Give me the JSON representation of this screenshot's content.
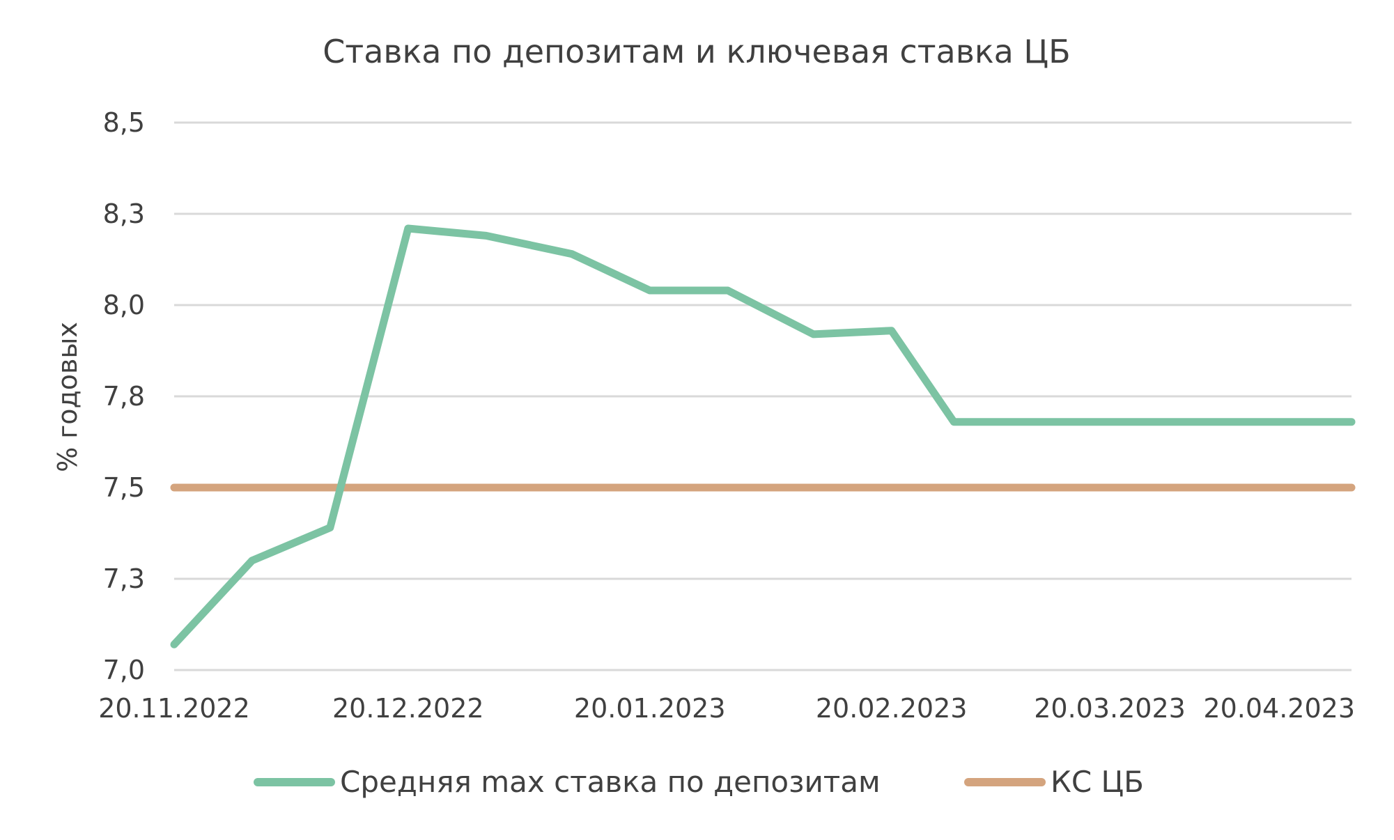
{
  "chart_data": {
    "type": "line",
    "title": "Ставка по депозитам и ключевая ставка ЦБ",
    "ylabel": "% годовых",
    "xlabel": "",
    "ylim": [
      7.0,
      8.5
    ],
    "yticks": [
      7.0,
      7.25,
      7.5,
      7.75,
      8.0,
      8.25,
      8.5
    ],
    "ytick_labels": [
      "7,0",
      "7,3",
      "7,5",
      "7,8",
      "8,0",
      "8,3",
      "8,5"
    ],
    "xlim": [
      "2022-11-20",
      "2023-04-20"
    ],
    "xtick_labels": [
      "20.11.2022",
      "20.12.2022",
      "20.01.2023",
      "20.02.2023",
      "20.03.2023",
      "20.04.2023"
    ],
    "xtick_dates": [
      "2022-11-20",
      "2022-12-20",
      "2023-01-20",
      "2023-02-20",
      "2023-03-20",
      "2023-04-20"
    ],
    "grid": true,
    "legend_position": "bottom",
    "series": [
      {
        "name": "Средняя max ставка по депозитам",
        "color": "#7cc3a3",
        "x": [
          "2022-11-20",
          "2022-11-30",
          "2022-12-10",
          "2022-12-20",
          "2022-12-30",
          "2023-01-10",
          "2023-01-20",
          "2023-01-30",
          "2023-02-10",
          "2023-02-20",
          "2023-02-28",
          "2023-03-10",
          "2023-03-20",
          "2023-03-30",
          "2023-04-10",
          "2023-04-20"
        ],
        "values": [
          7.07,
          7.3,
          7.39,
          8.21,
          8.19,
          8.14,
          8.04,
          8.04,
          7.92,
          7.93,
          7.68,
          7.68,
          7.68,
          7.68,
          7.68,
          7.68
        ]
      },
      {
        "name": "КС ЦБ",
        "color": "#d4a47e",
        "x": [
          "2022-11-20",
          "2023-04-20"
        ],
        "values": [
          7.5,
          7.5
        ]
      }
    ]
  }
}
